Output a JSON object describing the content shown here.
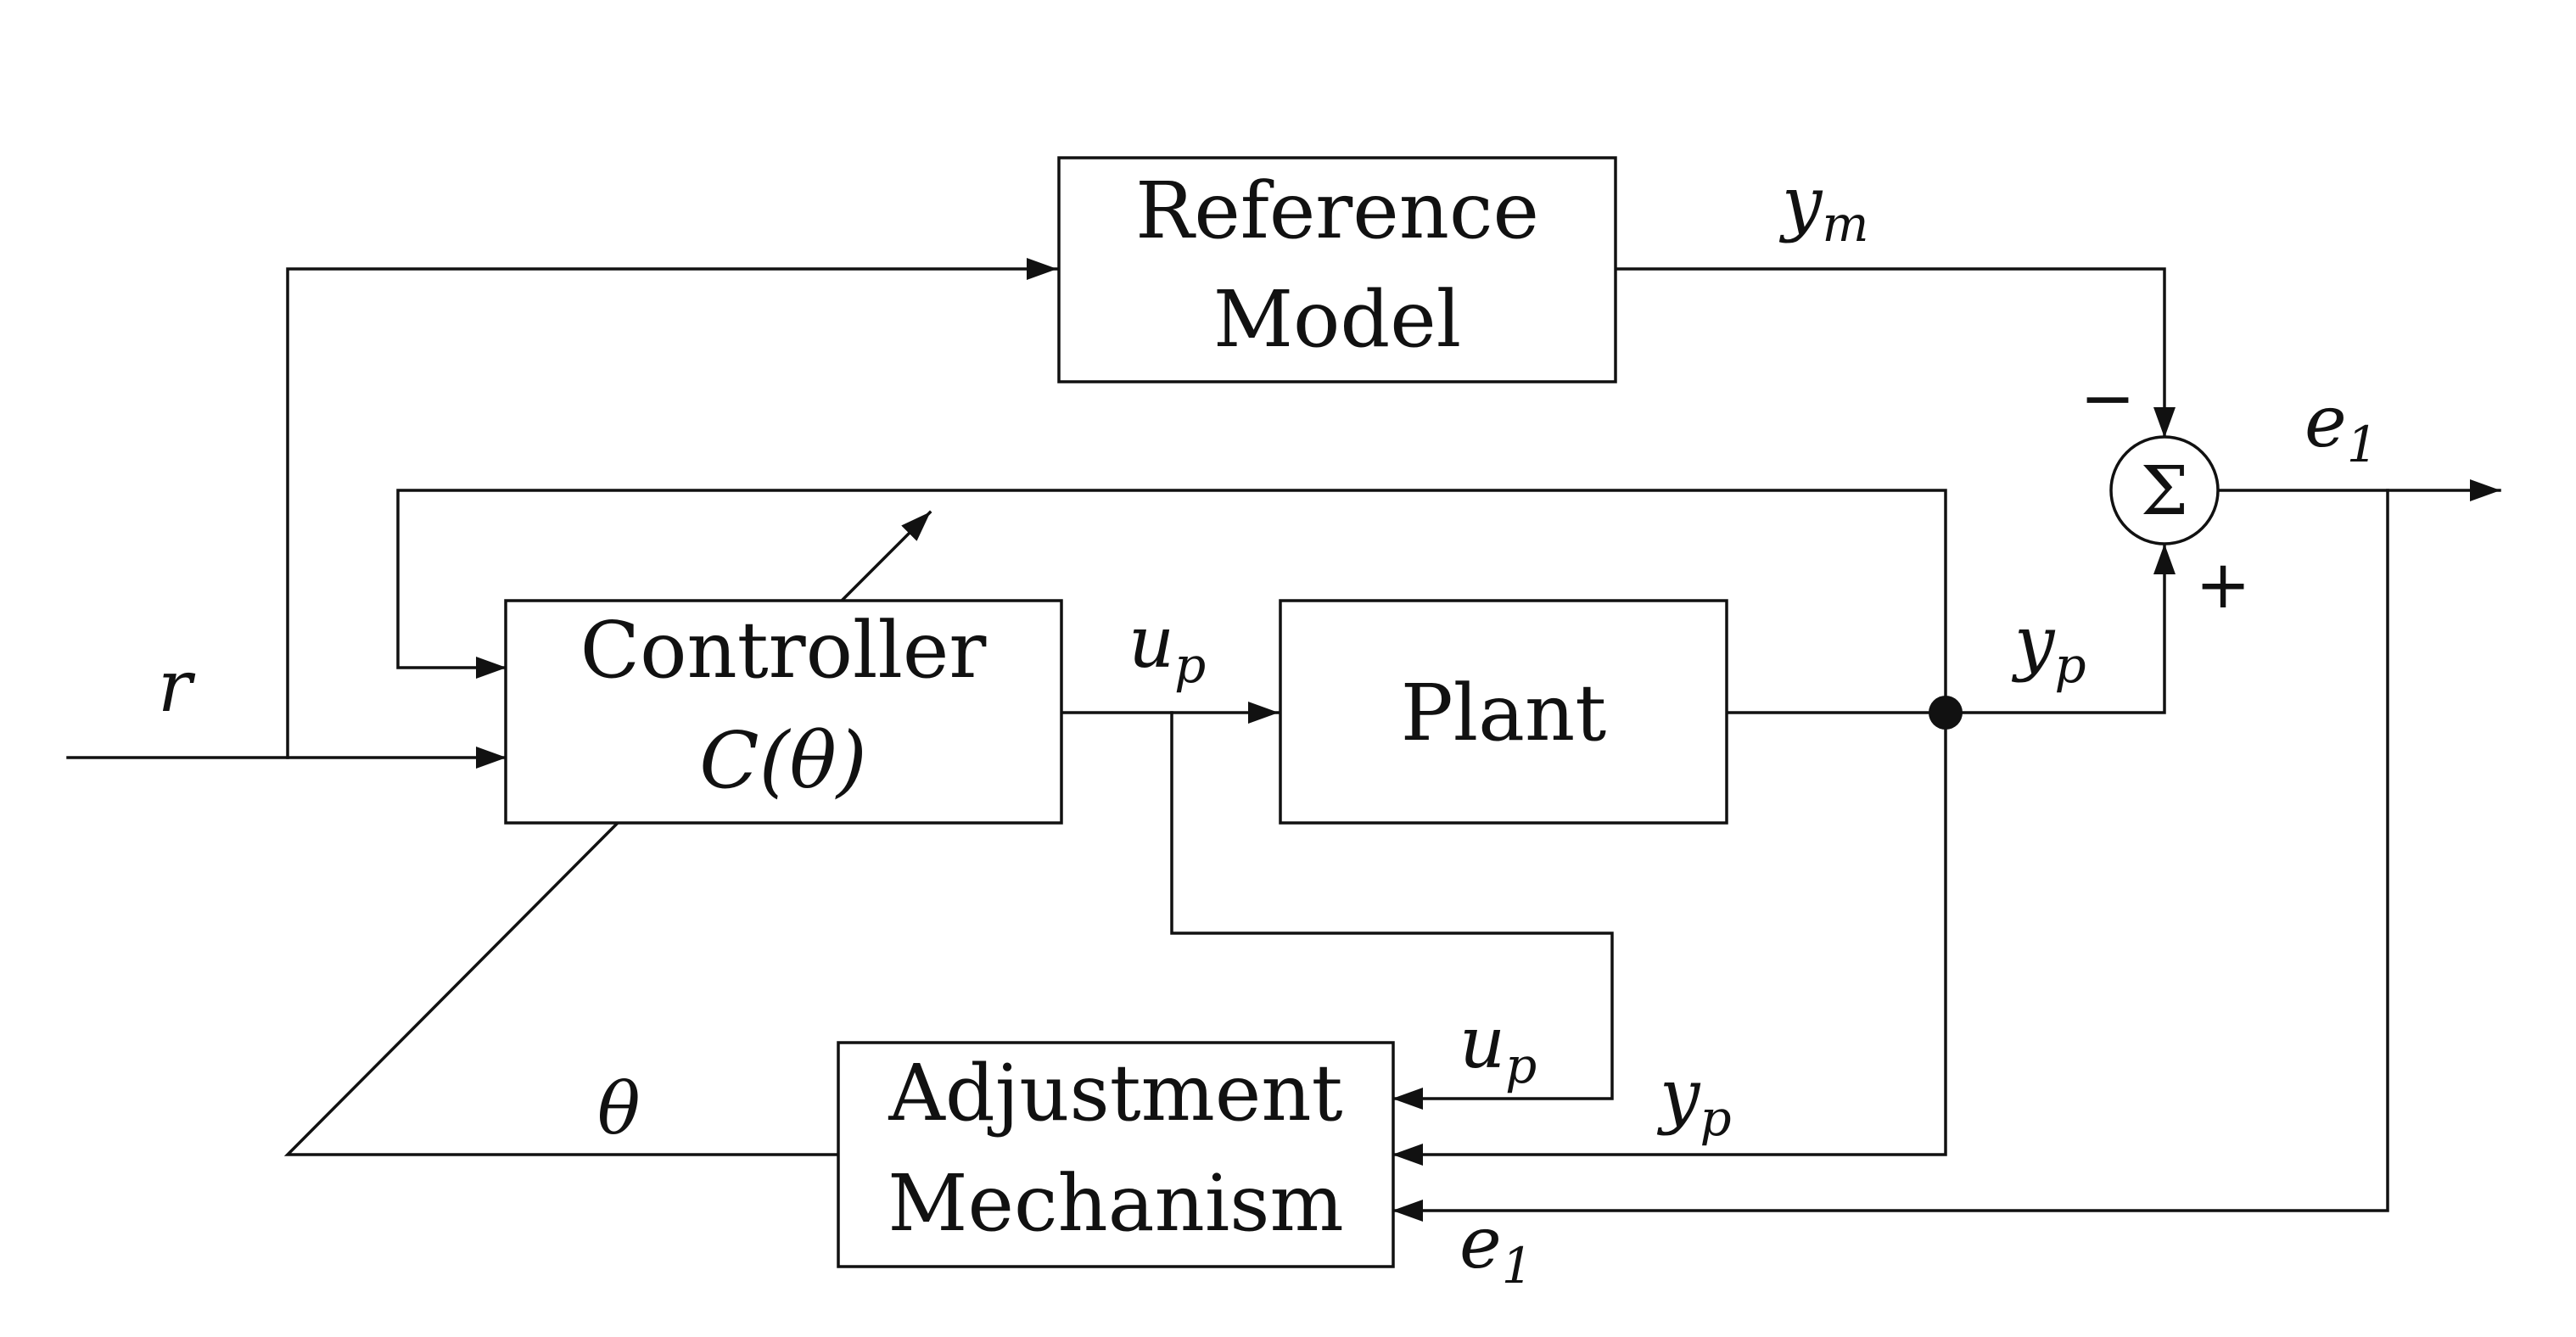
{
  "blocks": {
    "reference_model": {
      "line1": "Reference",
      "line2": "Model"
    },
    "controller": {
      "line1": "Controller",
      "line2": "C(θ)"
    },
    "plant": {
      "label": "Plant"
    },
    "adjustment": {
      "line1": "Adjustment",
      "line2": "Mechanism"
    }
  },
  "summing_junction": {
    "symbol": "Σ",
    "minus": "−",
    "plus": "+"
  },
  "signals": {
    "r": "r",
    "ym_base": "y",
    "ym_sub": "m",
    "e1_base": "e",
    "e1_sub": "1",
    "up_base": "u",
    "up_sub": "p",
    "yp_base": "y",
    "yp_sub": "p",
    "theta": "θ"
  }
}
